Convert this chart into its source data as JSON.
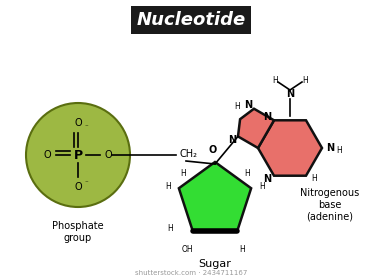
{
  "title": "Nucleotide",
  "title_fontsize": 13,
  "title_bg": "#1a1a1a",
  "title_color": "#ffffff",
  "background_color": "#ffffff",
  "phosphate_circle_color": "#9db843",
  "phosphate_circle_edge": "#5a6e10",
  "sugar_color": "#33dd33",
  "sugar_dark_color": "#111111",
  "adenine_color": "#e8706a",
  "adenine_dark_color": "#111111",
  "label_phosphate": "Phosphate\ngroup",
  "label_sugar": "Sugar",
  "label_nitrogenous": "Nitrogenous\nbase\n(adenine)",
  "watermark": "shutterstock.com · 2434711167"
}
